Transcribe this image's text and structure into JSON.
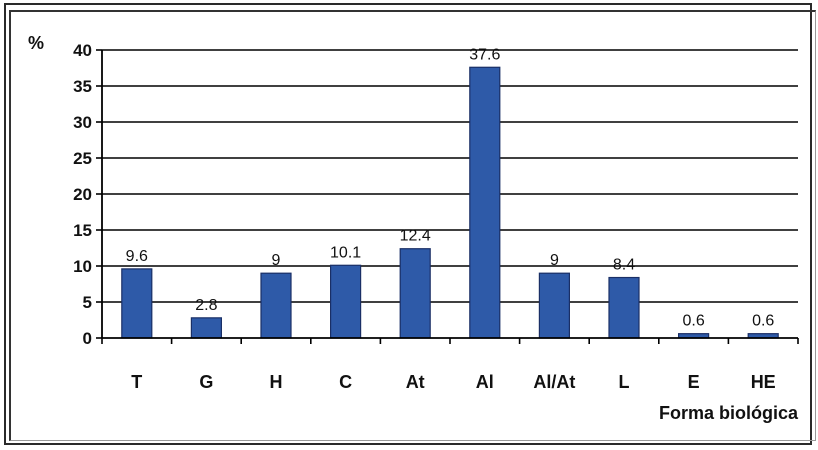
{
  "chart_data": {
    "type": "bar",
    "title": "",
    "ylabel": "%",
    "xlabel": "Forma biológica",
    "categories": [
      "T",
      "G",
      "H",
      "C",
      "At",
      "Al",
      "Al/At",
      "L",
      "E",
      "HE"
    ],
    "values": [
      9.6,
      2.8,
      9,
      10.1,
      12.4,
      37.6,
      9,
      8.4,
      0.6,
      0.6
    ],
    "data_labels": [
      "9.6",
      "2.8",
      "9",
      "10.1",
      "12.4",
      "37.6",
      "9",
      "8.4",
      "0.6",
      "0.6"
    ],
    "ylim": [
      0,
      40
    ],
    "yticks": [
      "0",
      "5",
      "10",
      "15",
      "20",
      "25",
      "30",
      "35",
      "40"
    ],
    "grid": true,
    "legend": "none",
    "bar_color": "#2e5aa8"
  }
}
